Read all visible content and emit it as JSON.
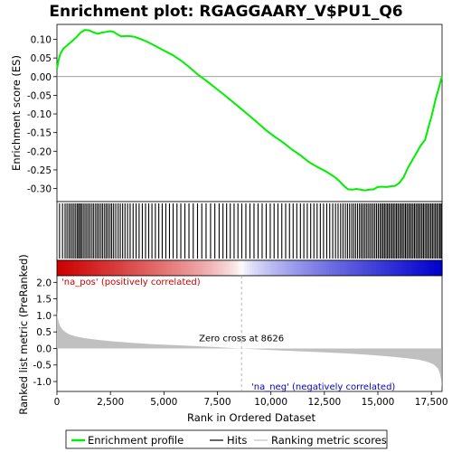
{
  "chart_data": {
    "type": "line",
    "title": "Enrichment plot: RGAGGAARY_V$PU1_Q6",
    "xlabel": "Rank in Ordered Dataset",
    "x_ticks": [
      0,
      2500,
      5000,
      7500,
      10000,
      12500,
      15000,
      17500
    ],
    "x_tick_labels": [
      "0",
      "2,500",
      "5,000",
      "7,500",
      "10,000",
      "12,500",
      "15,000",
      "17,500"
    ],
    "xlim": [
      0,
      18000
    ],
    "panels": {
      "es": {
        "ylabel": "Enrichment score (ES)",
        "ylim": [
          -0.335,
          0.14
        ],
        "y_ticks": [
          0.1,
          0.05,
          0.0,
          -0.05,
          -0.1,
          -0.15,
          -0.2,
          -0.25,
          -0.3
        ],
        "y_tick_labels": [
          "0.10",
          "0.05",
          "0.00",
          "-0.05",
          "-0.10",
          "-0.15",
          "-0.20",
          "-0.25",
          "-0.30"
        ],
        "series": [
          {
            "name": "Enrichment profile",
            "color": "#00ee00",
            "x": [
              0,
              60,
              150,
              300,
              500,
              700,
              900,
              1100,
              1300,
              1500,
              1700,
              1900,
              2100,
              2300,
              2500,
              2650,
              2800,
              3000,
              3300,
              3600,
              3900,
              4200,
              4600,
              5000,
              5400,
              5800,
              6200,
              6600,
              7000,
              7400,
              7800,
              8200,
              8626,
              9000,
              9400,
              9800,
              10200,
              10600,
              11000,
              11400,
              11800,
              12200,
              12600,
              13000,
              13200,
              13400,
              13600,
              13800,
              14000,
              14200,
              14400,
              14600,
              14800,
              15000,
              15200,
              15400,
              15600,
              15800,
              16000,
              16200,
              16400,
              16600,
              16800,
              17000,
              17200,
              17300,
              17400,
              17500,
              17600,
              17700,
              17800,
              17900,
              17990
            ],
            "y": [
              0.02,
              0.04,
              0.06,
              0.075,
              0.085,
              0.095,
              0.105,
              0.118,
              0.125,
              0.124,
              0.119,
              0.115,
              0.118,
              0.12,
              0.122,
              0.12,
              0.114,
              0.108,
              0.109,
              0.107,
              0.101,
              0.094,
              0.082,
              0.07,
              0.058,
              0.043,
              0.025,
              0.005,
              -0.012,
              -0.03,
              -0.048,
              -0.067,
              -0.087,
              -0.105,
              -0.125,
              -0.145,
              -0.162,
              -0.178,
              -0.196,
              -0.212,
              -0.23,
              -0.243,
              -0.255,
              -0.27,
              -0.28,
              -0.292,
              -0.302,
              -0.303,
              -0.301,
              -0.303,
              -0.305,
              -0.303,
              -0.302,
              -0.296,
              -0.295,
              -0.296,
              -0.294,
              -0.293,
              -0.285,
              -0.27,
              -0.245,
              -0.225,
              -0.205,
              -0.185,
              -0.17,
              -0.15,
              -0.128,
              -0.108,
              -0.085,
              -0.06,
              -0.04,
              -0.02,
              0.0
            ]
          }
        ],
        "zero_line": true
      },
      "hits": {
        "label": "Hits",
        "color": "#000000",
        "hit_ranks": [
          120,
          260,
          380,
          470,
          560,
          640,
          720,
          800,
          880,
          960,
          1020,
          1090,
          1150,
          1230,
          1310,
          1390,
          1470,
          1550,
          1640,
          1720,
          1810,
          1890,
          1970,
          2060,
          2140,
          2230,
          2310,
          2390,
          2480,
          2560,
          2650,
          2750,
          2860,
          2960,
          3070,
          3180,
          3300,
          3420,
          3560,
          3700,
          3840,
          3990,
          4140,
          4290,
          4440,
          4600,
          4760,
          4920,
          5090,
          5260,
          5430,
          5610,
          5790,
          5980,
          6170,
          6370,
          6570,
          6770,
          6970,
          7180,
          7380,
          7580,
          7760,
          7930,
          8100,
          8280,
          8460,
          8640,
          8830,
          9020,
          9210,
          9400,
          9590,
          9780,
          9970,
          10150,
          10330,
          10510,
          10690,
          10870,
          11040,
          11210,
          11380,
          11540,
          11700,
          11860,
          12010,
          12160,
          12310,
          12460,
          12610,
          12750,
          12890,
          13020,
          13140,
          13260,
          13370,
          13480,
          13580,
          13680,
          13780,
          13870,
          13960,
          14050,
          14140,
          14220,
          14300,
          14380,
          14460,
          14540,
          14620,
          14700,
          14780,
          14860,
          14940,
          15020,
          15100,
          15170,
          15240,
          15310,
          15380,
          15450,
          15520,
          15590,
          15660,
          15730,
          15800,
          15870,
          15940,
          16010,
          16080,
          16150,
          16220,
          16290,
          16360,
          16430,
          16500,
          16570,
          16640,
          16710,
          16780,
          16850,
          16920,
          16990,
          17060,
          17130,
          17200,
          17270,
          17340,
          17410,
          17480,
          17550,
          17620,
          17690,
          17760,
          17830,
          17900,
          17960
        ]
      },
      "rank_metric": {
        "ylabel": "Ranked list metric (PreRanked)",
        "ylim": [
          -1.3,
          2.2
        ],
        "y_ticks": [
          2.0,
          1.5,
          1.0,
          0.5,
          0.0,
          -0.5,
          -1.0
        ],
        "y_tick_labels": [
          "2.0",
          "1.5",
          "1.0",
          "0.5",
          "0.0",
          "-0.5",
          "-1.0"
        ],
        "series": [
          {
            "name": "Ranking metric scores",
            "color": "#c0c0c0",
            "x": [
              0,
              30,
              80,
              150,
              250,
              400,
              600,
              900,
              1300,
              1800,
              2500,
              3500,
              4500,
              5500,
              6500,
              7500,
              8626,
              9500,
              10500,
              11500,
              12500,
              13500,
              14500,
              15500,
              16300,
              16900,
              17300,
              17600,
              17800,
              17900,
              17960,
              17990
            ],
            "y": [
              1.15,
              0.95,
              0.8,
              0.68,
              0.58,
              0.49,
              0.42,
              0.36,
              0.31,
              0.27,
              0.22,
              0.17,
              0.13,
              0.1,
              0.07,
              0.04,
              0.0,
              -0.03,
              -0.06,
              -0.09,
              -0.12,
              -0.15,
              -0.19,
              -0.24,
              -0.29,
              -0.34,
              -0.4,
              -0.48,
              -0.6,
              -0.75,
              -0.95,
              -1.2
            ]
          }
        ],
        "zero_cross_label": "Zero cross at 8626",
        "zero_cross": 8626,
        "pos_label": "'na_pos' (positively correlated)",
        "neg_label": "'na_neg' (negatively correlated)",
        "pos_color": "#cc0000",
        "neg_color": "#0000cc"
      }
    },
    "legend": {
      "placement": "bottom",
      "items": [
        "Enrichment profile",
        "Hits",
        "Ranking metric scores"
      ]
    }
  }
}
